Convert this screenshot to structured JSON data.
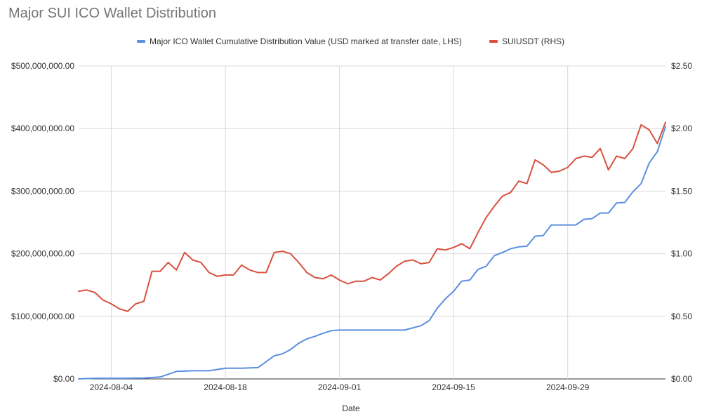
{
  "chart_data": {
    "type": "line",
    "title": "Major SUI ICO Wallet Distribution",
    "xlabel": "Date",
    "x_tick_labels": [
      "2024-08-04",
      "2024-08-18",
      "2024-09-01",
      "2024-09-15",
      "2024-09-29"
    ],
    "x_tick_days": [
      4,
      18,
      32,
      46,
      60
    ],
    "x_range_days": [
      0,
      72
    ],
    "x_day0_label": "2024-07-31",
    "y_left": {
      "ylim": [
        0,
        500000000
      ],
      "tick_values": [
        0,
        100000000,
        200000000,
        300000000,
        400000000,
        500000000
      ],
      "tick_labels": [
        "$0.00",
        "$100,000,000.00",
        "$200,000,000.00",
        "$300,000,000.00",
        "$400,000,000.00",
        "$500,000,000.00"
      ]
    },
    "y_right": {
      "ylim": [
        0,
        2.5
      ],
      "tick_values": [
        0,
        0.5,
        1.0,
        1.5,
        2.0,
        2.5
      ],
      "tick_labels": [
        "$0.00",
        "$0.50",
        "$1.00",
        "$1.50",
        "$2.00",
        "$2.50"
      ]
    },
    "grid": true,
    "legend_position": "top",
    "series": [
      {
        "name": "Major ICO Wallet Cumulative Distribution Value (USD marked at transfer date, LHS)",
        "axis": "left",
        "color": "#5b8fe0",
        "x": [
          0,
          2,
          5,
          8,
          10,
          12,
          14,
          16,
          18,
          19,
          20,
          22,
          24,
          25,
          26,
          27,
          28,
          29,
          30,
          31,
          32,
          33,
          34,
          36,
          38,
          40,
          42,
          43,
          44,
          45,
          46,
          47,
          48,
          49,
          50,
          51,
          52,
          53,
          54,
          55,
          56,
          57,
          58,
          59,
          60,
          61,
          62,
          63,
          64,
          65,
          66,
          67,
          68,
          69,
          70,
          71,
          72
        ],
        "y": [
          0,
          1000000,
          1000000,
          1500000,
          3000000,
          12000000,
          13000000,
          13000000,
          17000000,
          17000000,
          17000000,
          18000000,
          37000000,
          40000000,
          47000000,
          57000000,
          64000000,
          68000000,
          73000000,
          77000000,
          78000000,
          78000000,
          78000000,
          78000000,
          78000000,
          78000000,
          85000000,
          93000000,
          113000000,
          128000000,
          140000000,
          156000000,
          158000000,
          175000000,
          180000000,
          197000000,
          202000000,
          208000000,
          211000000,
          212000000,
          228000000,
          229000000,
          246000000,
          246000000,
          246000000,
          246000000,
          255000000,
          256000000,
          265000000,
          265000000,
          281000000,
          282000000,
          299000000,
          312000000,
          345000000,
          363000000,
          403000000
        ]
      },
      {
        "name": "SUIUSDT (RHS)",
        "axis": "right",
        "color": "#d9503f",
        "x": [
          0,
          1,
          2,
          3,
          4,
          5,
          6,
          7,
          8,
          9,
          10,
          11,
          12,
          13,
          14,
          15,
          16,
          17,
          18,
          19,
          20,
          21,
          22,
          23,
          24,
          25,
          26,
          27,
          28,
          29,
          30,
          31,
          32,
          33,
          34,
          35,
          36,
          37,
          38,
          39,
          40,
          41,
          42,
          43,
          44,
          45,
          46,
          47,
          48,
          49,
          50,
          51,
          52,
          53,
          54,
          55,
          56,
          57,
          58,
          59,
          60,
          61,
          62,
          63,
          64,
          65,
          66,
          67,
          68,
          69,
          70,
          71,
          72
        ],
        "y": [
          0.7,
          0.71,
          0.69,
          0.63,
          0.6,
          0.56,
          0.54,
          0.6,
          0.62,
          0.86,
          0.86,
          0.93,
          0.87,
          1.01,
          0.95,
          0.93,
          0.85,
          0.82,
          0.83,
          0.83,
          0.91,
          0.87,
          0.85,
          0.85,
          1.01,
          1.02,
          1.0,
          0.93,
          0.85,
          0.81,
          0.8,
          0.83,
          0.79,
          0.76,
          0.78,
          0.78,
          0.81,
          0.79,
          0.84,
          0.9,
          0.94,
          0.95,
          0.92,
          0.93,
          1.04,
          1.03,
          1.05,
          1.08,
          1.04,
          1.17,
          1.29,
          1.38,
          1.46,
          1.49,
          1.58,
          1.56,
          1.75,
          1.71,
          1.65,
          1.66,
          1.69,
          1.76,
          1.78,
          1.77,
          1.84,
          1.67,
          1.78,
          1.76,
          1.84,
          2.03,
          1.99,
          1.88,
          2.05
        ]
      }
    ]
  }
}
